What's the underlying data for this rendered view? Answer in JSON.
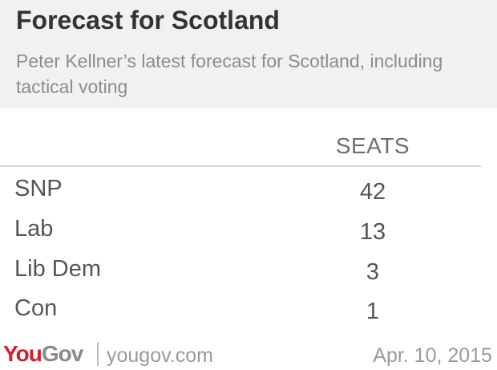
{
  "chart_data": {
    "type": "table",
    "title": "Forecast for Scotland",
    "subtitle": "Peter Kellner’s latest forecast for Scotland, including tactical voting",
    "columns": [
      "SEATS"
    ],
    "rows": [
      {
        "party": "SNP",
        "seats": "42"
      },
      {
        "party": "Lab",
        "seats": "13"
      },
      {
        "party": "Lib Dem",
        "seats": "3"
      },
      {
        "party": "Con",
        "seats": "1"
      }
    ]
  },
  "footer": {
    "logo_you": "You",
    "logo_gov": "Gov",
    "site": "yougov.com",
    "date": "Apr. 10, 2015"
  },
  "colors": {
    "header_bg": "#f1f1f1",
    "brand_red": "#d0202d",
    "text": "#555555"
  }
}
